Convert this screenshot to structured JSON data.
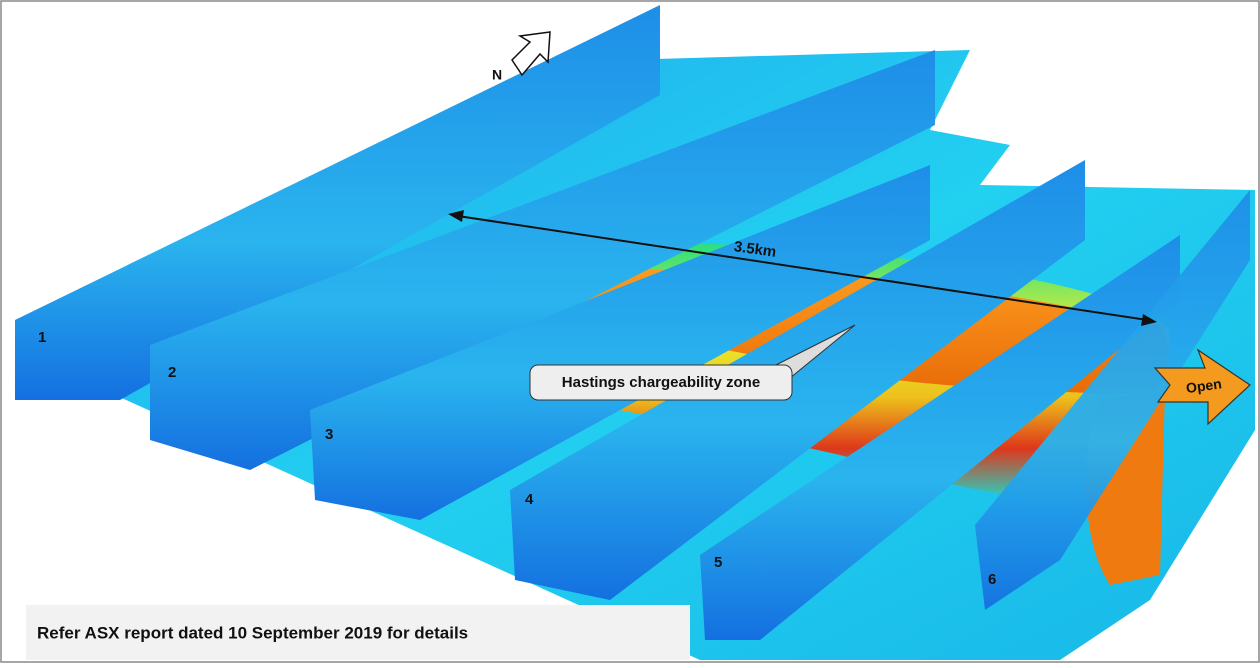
{
  "north_label": "N",
  "section_labels": [
    "1",
    "2",
    "3",
    "4",
    "5",
    "6"
  ],
  "distance_label": "3.5km",
  "zone_callout": "Hastings chargeability zone",
  "open_label": "Open",
  "footer_note": "Refer ASX report dated 10 September 2019 for details"
}
